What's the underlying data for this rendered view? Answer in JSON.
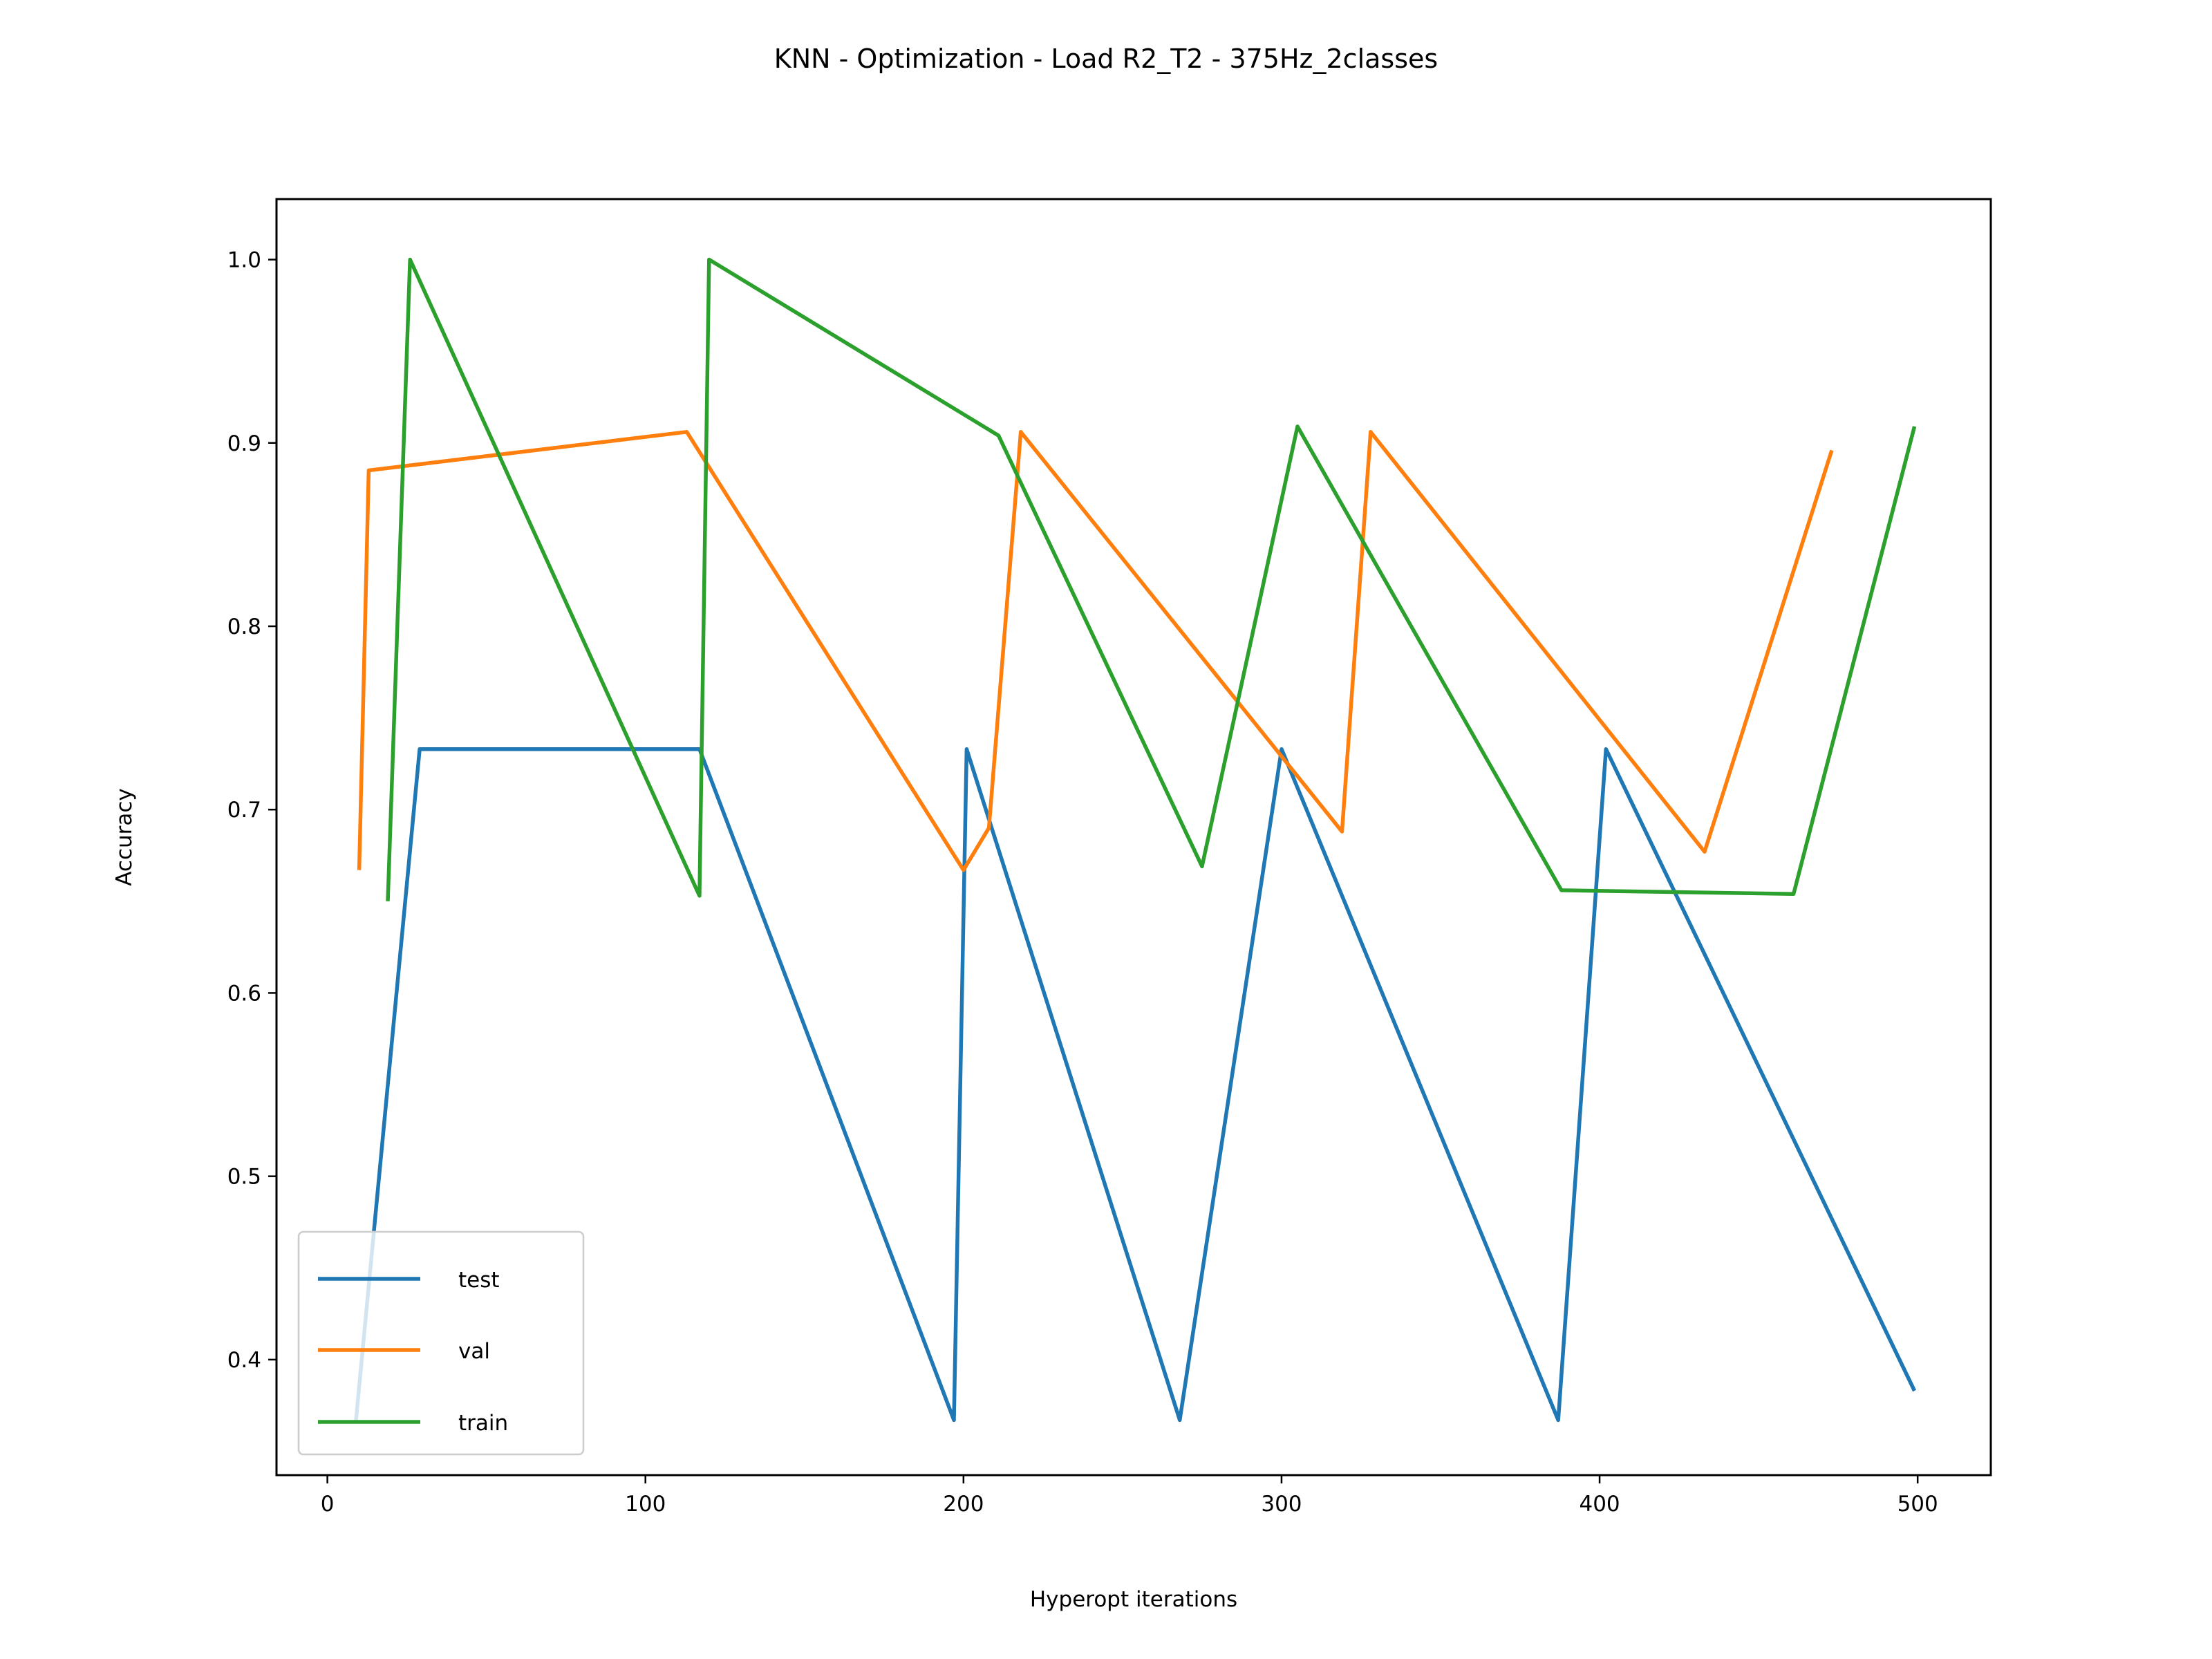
{
  "chart_data": {
    "type": "line",
    "title": "KNN - Optimization - Load R2_T2 - 375Hz_2classes",
    "xlabel": "Hyperopt iterations",
    "ylabel": "Accuracy",
    "xlim": [
      -16,
      523
    ],
    "ylim": [
      0.337,
      1.033
    ],
    "xticks": [
      0,
      100,
      200,
      300,
      400,
      500
    ],
    "xtick_labels": [
      "0",
      "100",
      "200",
      "300",
      "400",
      "500"
    ],
    "yticks": [
      0.4,
      0.5,
      0.6,
      0.7,
      0.8,
      0.9,
      1.0
    ],
    "ytick_labels": [
      "0.4",
      "0.5",
      "0.6",
      "0.7",
      "0.8",
      "0.9",
      "1.0"
    ],
    "grid": false,
    "legend_position": "lower-left",
    "series": [
      {
        "name": "test",
        "color": "#1f77b4",
        "x": [
          9,
          29,
          117,
          197,
          201,
          268,
          300,
          387,
          402,
          499
        ],
        "y": [
          0.367,
          0.733,
          0.733,
          0.367,
          0.733,
          0.367,
          0.733,
          0.367,
          0.733,
          0.383
        ]
      },
      {
        "name": "val",
        "color": "#ff7f0e",
        "x": [
          10,
          13,
          113,
          200,
          208,
          218,
          319,
          328,
          433,
          473
        ],
        "y": [
          0.667,
          0.885,
          0.906,
          0.667,
          0.69,
          0.906,
          0.688,
          0.906,
          0.677,
          0.896
        ]
      },
      {
        "name": "train",
        "color": "#2ca02c",
        "x": [
          19,
          26,
          117,
          120,
          211,
          275,
          305,
          388,
          461,
          499
        ],
        "y": [
          0.65,
          1.0,
          0.653,
          1.0,
          0.904,
          0.669,
          0.909,
          0.656,
          0.654,
          0.909
        ]
      }
    ]
  }
}
